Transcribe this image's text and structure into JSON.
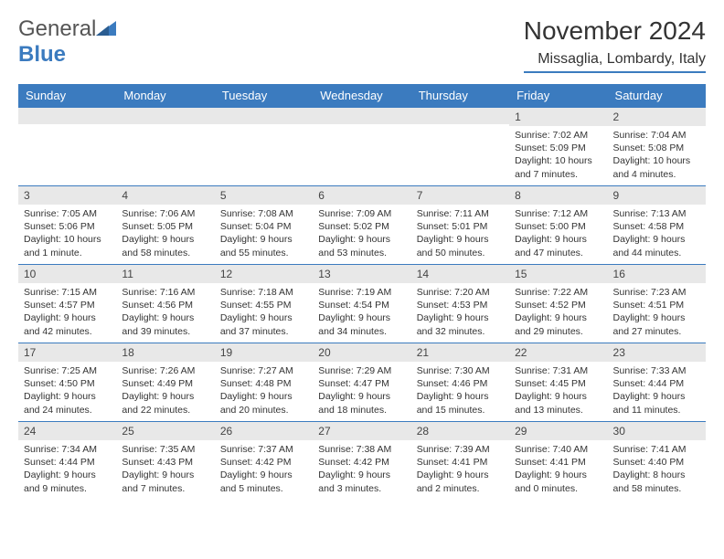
{
  "brand": {
    "part1": "General",
    "part2": "Blue"
  },
  "title": "November 2024",
  "location": "Missaglia, Lombardy, Italy",
  "colors": {
    "accent": "#3b7bbf",
    "header_bg": "#3b7bbf",
    "daynum_bg": "#e8e8e8",
    "text": "#333333"
  },
  "day_headers": [
    "Sunday",
    "Monday",
    "Tuesday",
    "Wednesday",
    "Thursday",
    "Friday",
    "Saturday"
  ],
  "weeks": [
    [
      {
        "n": "",
        "sunrise": "",
        "sunset": "",
        "daylight": ""
      },
      {
        "n": "",
        "sunrise": "",
        "sunset": "",
        "daylight": ""
      },
      {
        "n": "",
        "sunrise": "",
        "sunset": "",
        "daylight": ""
      },
      {
        "n": "",
        "sunrise": "",
        "sunset": "",
        "daylight": ""
      },
      {
        "n": "",
        "sunrise": "",
        "sunset": "",
        "daylight": ""
      },
      {
        "n": "1",
        "sunrise": "Sunrise: 7:02 AM",
        "sunset": "Sunset: 5:09 PM",
        "daylight": "Daylight: 10 hours and 7 minutes."
      },
      {
        "n": "2",
        "sunrise": "Sunrise: 7:04 AM",
        "sunset": "Sunset: 5:08 PM",
        "daylight": "Daylight: 10 hours and 4 minutes."
      }
    ],
    [
      {
        "n": "3",
        "sunrise": "Sunrise: 7:05 AM",
        "sunset": "Sunset: 5:06 PM",
        "daylight": "Daylight: 10 hours and 1 minute."
      },
      {
        "n": "4",
        "sunrise": "Sunrise: 7:06 AM",
        "sunset": "Sunset: 5:05 PM",
        "daylight": "Daylight: 9 hours and 58 minutes."
      },
      {
        "n": "5",
        "sunrise": "Sunrise: 7:08 AM",
        "sunset": "Sunset: 5:04 PM",
        "daylight": "Daylight: 9 hours and 55 minutes."
      },
      {
        "n": "6",
        "sunrise": "Sunrise: 7:09 AM",
        "sunset": "Sunset: 5:02 PM",
        "daylight": "Daylight: 9 hours and 53 minutes."
      },
      {
        "n": "7",
        "sunrise": "Sunrise: 7:11 AM",
        "sunset": "Sunset: 5:01 PM",
        "daylight": "Daylight: 9 hours and 50 minutes."
      },
      {
        "n": "8",
        "sunrise": "Sunrise: 7:12 AM",
        "sunset": "Sunset: 5:00 PM",
        "daylight": "Daylight: 9 hours and 47 minutes."
      },
      {
        "n": "9",
        "sunrise": "Sunrise: 7:13 AM",
        "sunset": "Sunset: 4:58 PM",
        "daylight": "Daylight: 9 hours and 44 minutes."
      }
    ],
    [
      {
        "n": "10",
        "sunrise": "Sunrise: 7:15 AM",
        "sunset": "Sunset: 4:57 PM",
        "daylight": "Daylight: 9 hours and 42 minutes."
      },
      {
        "n": "11",
        "sunrise": "Sunrise: 7:16 AM",
        "sunset": "Sunset: 4:56 PM",
        "daylight": "Daylight: 9 hours and 39 minutes."
      },
      {
        "n": "12",
        "sunrise": "Sunrise: 7:18 AM",
        "sunset": "Sunset: 4:55 PM",
        "daylight": "Daylight: 9 hours and 37 minutes."
      },
      {
        "n": "13",
        "sunrise": "Sunrise: 7:19 AM",
        "sunset": "Sunset: 4:54 PM",
        "daylight": "Daylight: 9 hours and 34 minutes."
      },
      {
        "n": "14",
        "sunrise": "Sunrise: 7:20 AM",
        "sunset": "Sunset: 4:53 PM",
        "daylight": "Daylight: 9 hours and 32 minutes."
      },
      {
        "n": "15",
        "sunrise": "Sunrise: 7:22 AM",
        "sunset": "Sunset: 4:52 PM",
        "daylight": "Daylight: 9 hours and 29 minutes."
      },
      {
        "n": "16",
        "sunrise": "Sunrise: 7:23 AM",
        "sunset": "Sunset: 4:51 PM",
        "daylight": "Daylight: 9 hours and 27 minutes."
      }
    ],
    [
      {
        "n": "17",
        "sunrise": "Sunrise: 7:25 AM",
        "sunset": "Sunset: 4:50 PM",
        "daylight": "Daylight: 9 hours and 24 minutes."
      },
      {
        "n": "18",
        "sunrise": "Sunrise: 7:26 AM",
        "sunset": "Sunset: 4:49 PM",
        "daylight": "Daylight: 9 hours and 22 minutes."
      },
      {
        "n": "19",
        "sunrise": "Sunrise: 7:27 AM",
        "sunset": "Sunset: 4:48 PM",
        "daylight": "Daylight: 9 hours and 20 minutes."
      },
      {
        "n": "20",
        "sunrise": "Sunrise: 7:29 AM",
        "sunset": "Sunset: 4:47 PM",
        "daylight": "Daylight: 9 hours and 18 minutes."
      },
      {
        "n": "21",
        "sunrise": "Sunrise: 7:30 AM",
        "sunset": "Sunset: 4:46 PM",
        "daylight": "Daylight: 9 hours and 15 minutes."
      },
      {
        "n": "22",
        "sunrise": "Sunrise: 7:31 AM",
        "sunset": "Sunset: 4:45 PM",
        "daylight": "Daylight: 9 hours and 13 minutes."
      },
      {
        "n": "23",
        "sunrise": "Sunrise: 7:33 AM",
        "sunset": "Sunset: 4:44 PM",
        "daylight": "Daylight: 9 hours and 11 minutes."
      }
    ],
    [
      {
        "n": "24",
        "sunrise": "Sunrise: 7:34 AM",
        "sunset": "Sunset: 4:44 PM",
        "daylight": "Daylight: 9 hours and 9 minutes."
      },
      {
        "n": "25",
        "sunrise": "Sunrise: 7:35 AM",
        "sunset": "Sunset: 4:43 PM",
        "daylight": "Daylight: 9 hours and 7 minutes."
      },
      {
        "n": "26",
        "sunrise": "Sunrise: 7:37 AM",
        "sunset": "Sunset: 4:42 PM",
        "daylight": "Daylight: 9 hours and 5 minutes."
      },
      {
        "n": "27",
        "sunrise": "Sunrise: 7:38 AM",
        "sunset": "Sunset: 4:42 PM",
        "daylight": "Daylight: 9 hours and 3 minutes."
      },
      {
        "n": "28",
        "sunrise": "Sunrise: 7:39 AM",
        "sunset": "Sunset: 4:41 PM",
        "daylight": "Daylight: 9 hours and 2 minutes."
      },
      {
        "n": "29",
        "sunrise": "Sunrise: 7:40 AM",
        "sunset": "Sunset: 4:41 PM",
        "daylight": "Daylight: 9 hours and 0 minutes."
      },
      {
        "n": "30",
        "sunrise": "Sunrise: 7:41 AM",
        "sunset": "Sunset: 4:40 PM",
        "daylight": "Daylight: 8 hours and 58 minutes."
      }
    ]
  ]
}
